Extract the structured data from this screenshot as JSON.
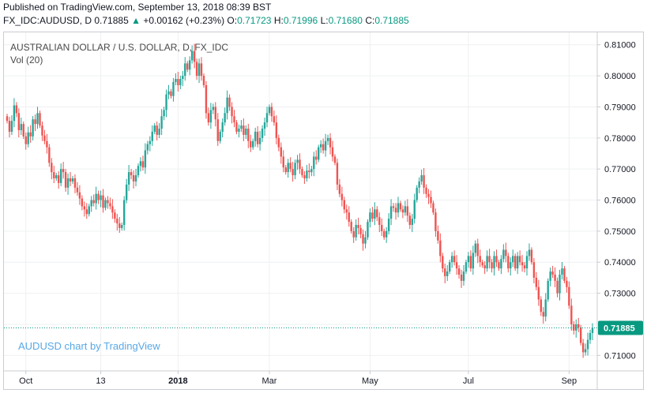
{
  "header": {
    "published": "Published on TradingView.com, September 13, 2018 08:39 BST",
    "symbol": "FX_IDC:AUDUSD, D",
    "last": "0.71885",
    "change": "+0.00162 (+0.23%)",
    "o_label": "O:",
    "o_value": "0.71723",
    "h_label": "H:",
    "h_value": "0.71996",
    "l_label": "L:",
    "l_value": "0.71680",
    "c_label": "C:",
    "c_value": "0.71885"
  },
  "legend": {
    "title": "AUSTRALIAN DOLLAR / U.S. DOLLAR, D, FX_IDC",
    "vol": "Vol (20)"
  },
  "watermark": "AUDUSD chart by TradingView",
  "colors": {
    "up": "#26a69a",
    "down": "#ef5350",
    "grid": "#eef0f3",
    "price_line": "#089981"
  },
  "chart_data": {
    "type": "candlestick",
    "title": "AUSTRALIAN DOLLAR / U.S. DOLLAR, D, FX_IDC",
    "ylim": [
      0.705,
      0.814
    ],
    "y_ticks": [
      "0.81000",
      "0.80000",
      "0.79000",
      "0.78000",
      "0.77000",
      "0.76000",
      "0.75000",
      "0.74000",
      "0.73000",
      "0.72000",
      "0.71000"
    ],
    "y_tick_values": [
      0.81,
      0.8,
      0.79,
      0.78,
      0.77,
      0.76,
      0.75,
      0.74,
      0.73,
      0.72,
      0.71
    ],
    "x_ticks": [
      {
        "label": "Oct",
        "index": 8
      },
      {
        "label": "13",
        "index": 40
      },
      {
        "label": "2018",
        "index": 73
      },
      {
        "label": "Mar",
        "index": 112
      },
      {
        "label": "May",
        "index": 155
      },
      {
        "label": "Jul",
        "index": 197
      },
      {
        "label": "Sep",
        "index": 240
      }
    ],
    "current_price": 0.71885,
    "current_price_label": "0.71885",
    "closes": [
      0.7855,
      0.782,
      0.7855,
      0.7905,
      0.788,
      0.7825,
      0.7845,
      0.7805,
      0.778,
      0.7818,
      0.7805,
      0.786,
      0.7845,
      0.788,
      0.784,
      0.7808,
      0.779,
      0.777,
      0.772,
      0.769,
      0.767,
      0.768,
      0.7655,
      0.77,
      0.769,
      0.764,
      0.767,
      0.766,
      0.767,
      0.764,
      0.7625,
      0.7605,
      0.758,
      0.757,
      0.7555,
      0.758,
      0.76,
      0.759,
      0.762,
      0.76,
      0.7615,
      0.7575,
      0.76,
      0.759,
      0.758,
      0.756,
      0.754,
      0.7525,
      0.751,
      0.752,
      0.76,
      0.765,
      0.769,
      0.768,
      0.766,
      0.768,
      0.771,
      0.7725,
      0.7705,
      0.776,
      0.778,
      0.779,
      0.782,
      0.784,
      0.781,
      0.783,
      0.787,
      0.789,
      0.794,
      0.795,
      0.7935,
      0.798,
      0.799,
      0.797,
      0.799,
      0.8,
      0.804,
      0.802,
      0.805,
      0.808,
      0.8045,
      0.8,
      0.804,
      0.8,
      0.797,
      0.788,
      0.785,
      0.789,
      0.79,
      0.786,
      0.779,
      0.782,
      0.785,
      0.788,
      0.793,
      0.79,
      0.787,
      0.785,
      0.782,
      0.783,
      0.784,
      0.781,
      0.783,
      0.779,
      0.777,
      0.779,
      0.782,
      0.778,
      0.78,
      0.783,
      0.785,
      0.788,
      0.79,
      0.787,
      0.785,
      0.78,
      0.777,
      0.774,
      0.7705,
      0.769,
      0.772,
      0.77,
      0.768,
      0.772,
      0.773,
      0.77,
      0.768,
      0.767,
      0.7695,
      0.769,
      0.77,
      0.774,
      0.773,
      0.777,
      0.778,
      0.776,
      0.779,
      0.78,
      0.777,
      0.774,
      0.772,
      0.765,
      0.762,
      0.76,
      0.757,
      0.756,
      0.753,
      0.75,
      0.748,
      0.752,
      0.751,
      0.749,
      0.746,
      0.748,
      0.753,
      0.756,
      0.754,
      0.757,
      0.7545,
      0.752,
      0.75,
      0.748,
      0.75,
      0.754,
      0.758,
      0.7575,
      0.756,
      0.759,
      0.757,
      0.756,
      0.758,
      0.755,
      0.752,
      0.754,
      0.76,
      0.764,
      0.766,
      0.768,
      0.764,
      0.762,
      0.761,
      0.759,
      0.756,
      0.75,
      0.747,
      0.742,
      0.738,
      0.7355,
      0.737,
      0.74,
      0.742,
      0.74,
      0.738,
      0.736,
      0.734,
      0.737,
      0.74,
      0.742,
      0.738,
      0.743,
      0.746,
      0.742,
      0.74,
      0.739,
      0.738,
      0.742,
      0.74,
      0.738,
      0.742,
      0.74,
      0.738,
      0.741,
      0.744,
      0.742,
      0.738,
      0.74,
      0.742,
      0.738,
      0.742,
      0.74,
      0.739,
      0.738,
      0.742,
      0.744,
      0.74,
      0.735,
      0.732,
      0.728,
      0.724,
      0.7225,
      0.728,
      0.734,
      0.737,
      0.736,
      0.734,
      0.73,
      0.736,
      0.738,
      0.734,
      0.732,
      0.726,
      0.72,
      0.718,
      0.72,
      0.719,
      0.714,
      0.711,
      0.712,
      0.715,
      0.7172,
      0.7188
    ]
  }
}
